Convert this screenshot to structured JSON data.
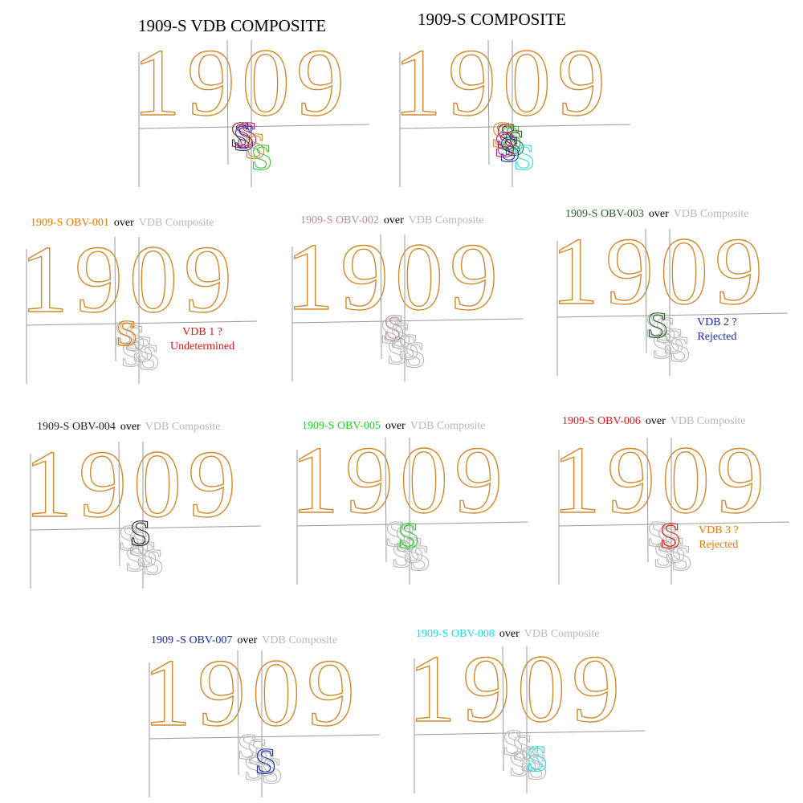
{
  "colors": {
    "digits": "#d08a2e",
    "grid": "#9a9a9a",
    "composite": "#b8b8b8",
    "over_word": "#000000"
  },
  "titles": {
    "vdb": "1909-S VDB COMPOSITE",
    "plain": "1909-S COMPOSITE"
  },
  "digits_text": "1909",
  "s_glyph": "S",
  "over_word": "over",
  "composite_label": "VDB Composite",
  "top_panels": [
    {
      "s_layers": [
        {
          "color": "#8b1a1a"
        },
        {
          "color": "#2030a0"
        },
        {
          "color": "#a0208a"
        },
        {
          "color": "#d08a2e"
        },
        {
          "color": "#3fbf3f"
        }
      ]
    },
    {
      "s_layers": [
        {
          "color": "#d08a2e"
        },
        {
          "color": "#8b1a1a"
        },
        {
          "color": "#3fbf3f"
        },
        {
          "color": "#2a6a2a"
        },
        {
          "color": "#2030a0"
        },
        {
          "color": "#a0208a"
        },
        {
          "color": "#3ad6d6"
        }
      ]
    }
  ],
  "obverses": [
    {
      "label": "1909-S OBV-001",
      "color": "#e07b00",
      "note_line1": "VDB 1 ?",
      "note_line2": "Undetermined",
      "note_color": "#d81818"
    },
    {
      "label": "1909-S OBV-002",
      "color": "#b89090",
      "note_line1": "",
      "note_line2": "",
      "note_color": "#000000"
    },
    {
      "label": "1909-S OBV-003",
      "color": "#2e5e2e",
      "note_line1": "VDB 2 ?",
      "note_line2": "Rejected",
      "note_color": "#1a2aa8"
    },
    {
      "label": "1909-S OBV-004",
      "color": "#222222",
      "note_line1": "",
      "note_line2": "",
      "note_color": "#000000"
    },
    {
      "label": "1909-S OBV-005",
      "color": "#22cc22",
      "note_line1": "",
      "note_line2": "",
      "note_color": "#000000"
    },
    {
      "label": "1909-S OBV-006",
      "color": "#d81818",
      "note_line1": "VDB 3 ?",
      "note_line2": "Rejected",
      "note_color": "#e07b00"
    },
    {
      "label": "1909 -S OBV-007",
      "color": "#1a2aa8",
      "note_line1": "",
      "note_line2": "",
      "note_color": "#000000"
    },
    {
      "label": "1909-S OBV-008",
      "color": "#22d8e6",
      "note_line1": "",
      "note_line2": "",
      "note_color": "#000000"
    }
  ]
}
